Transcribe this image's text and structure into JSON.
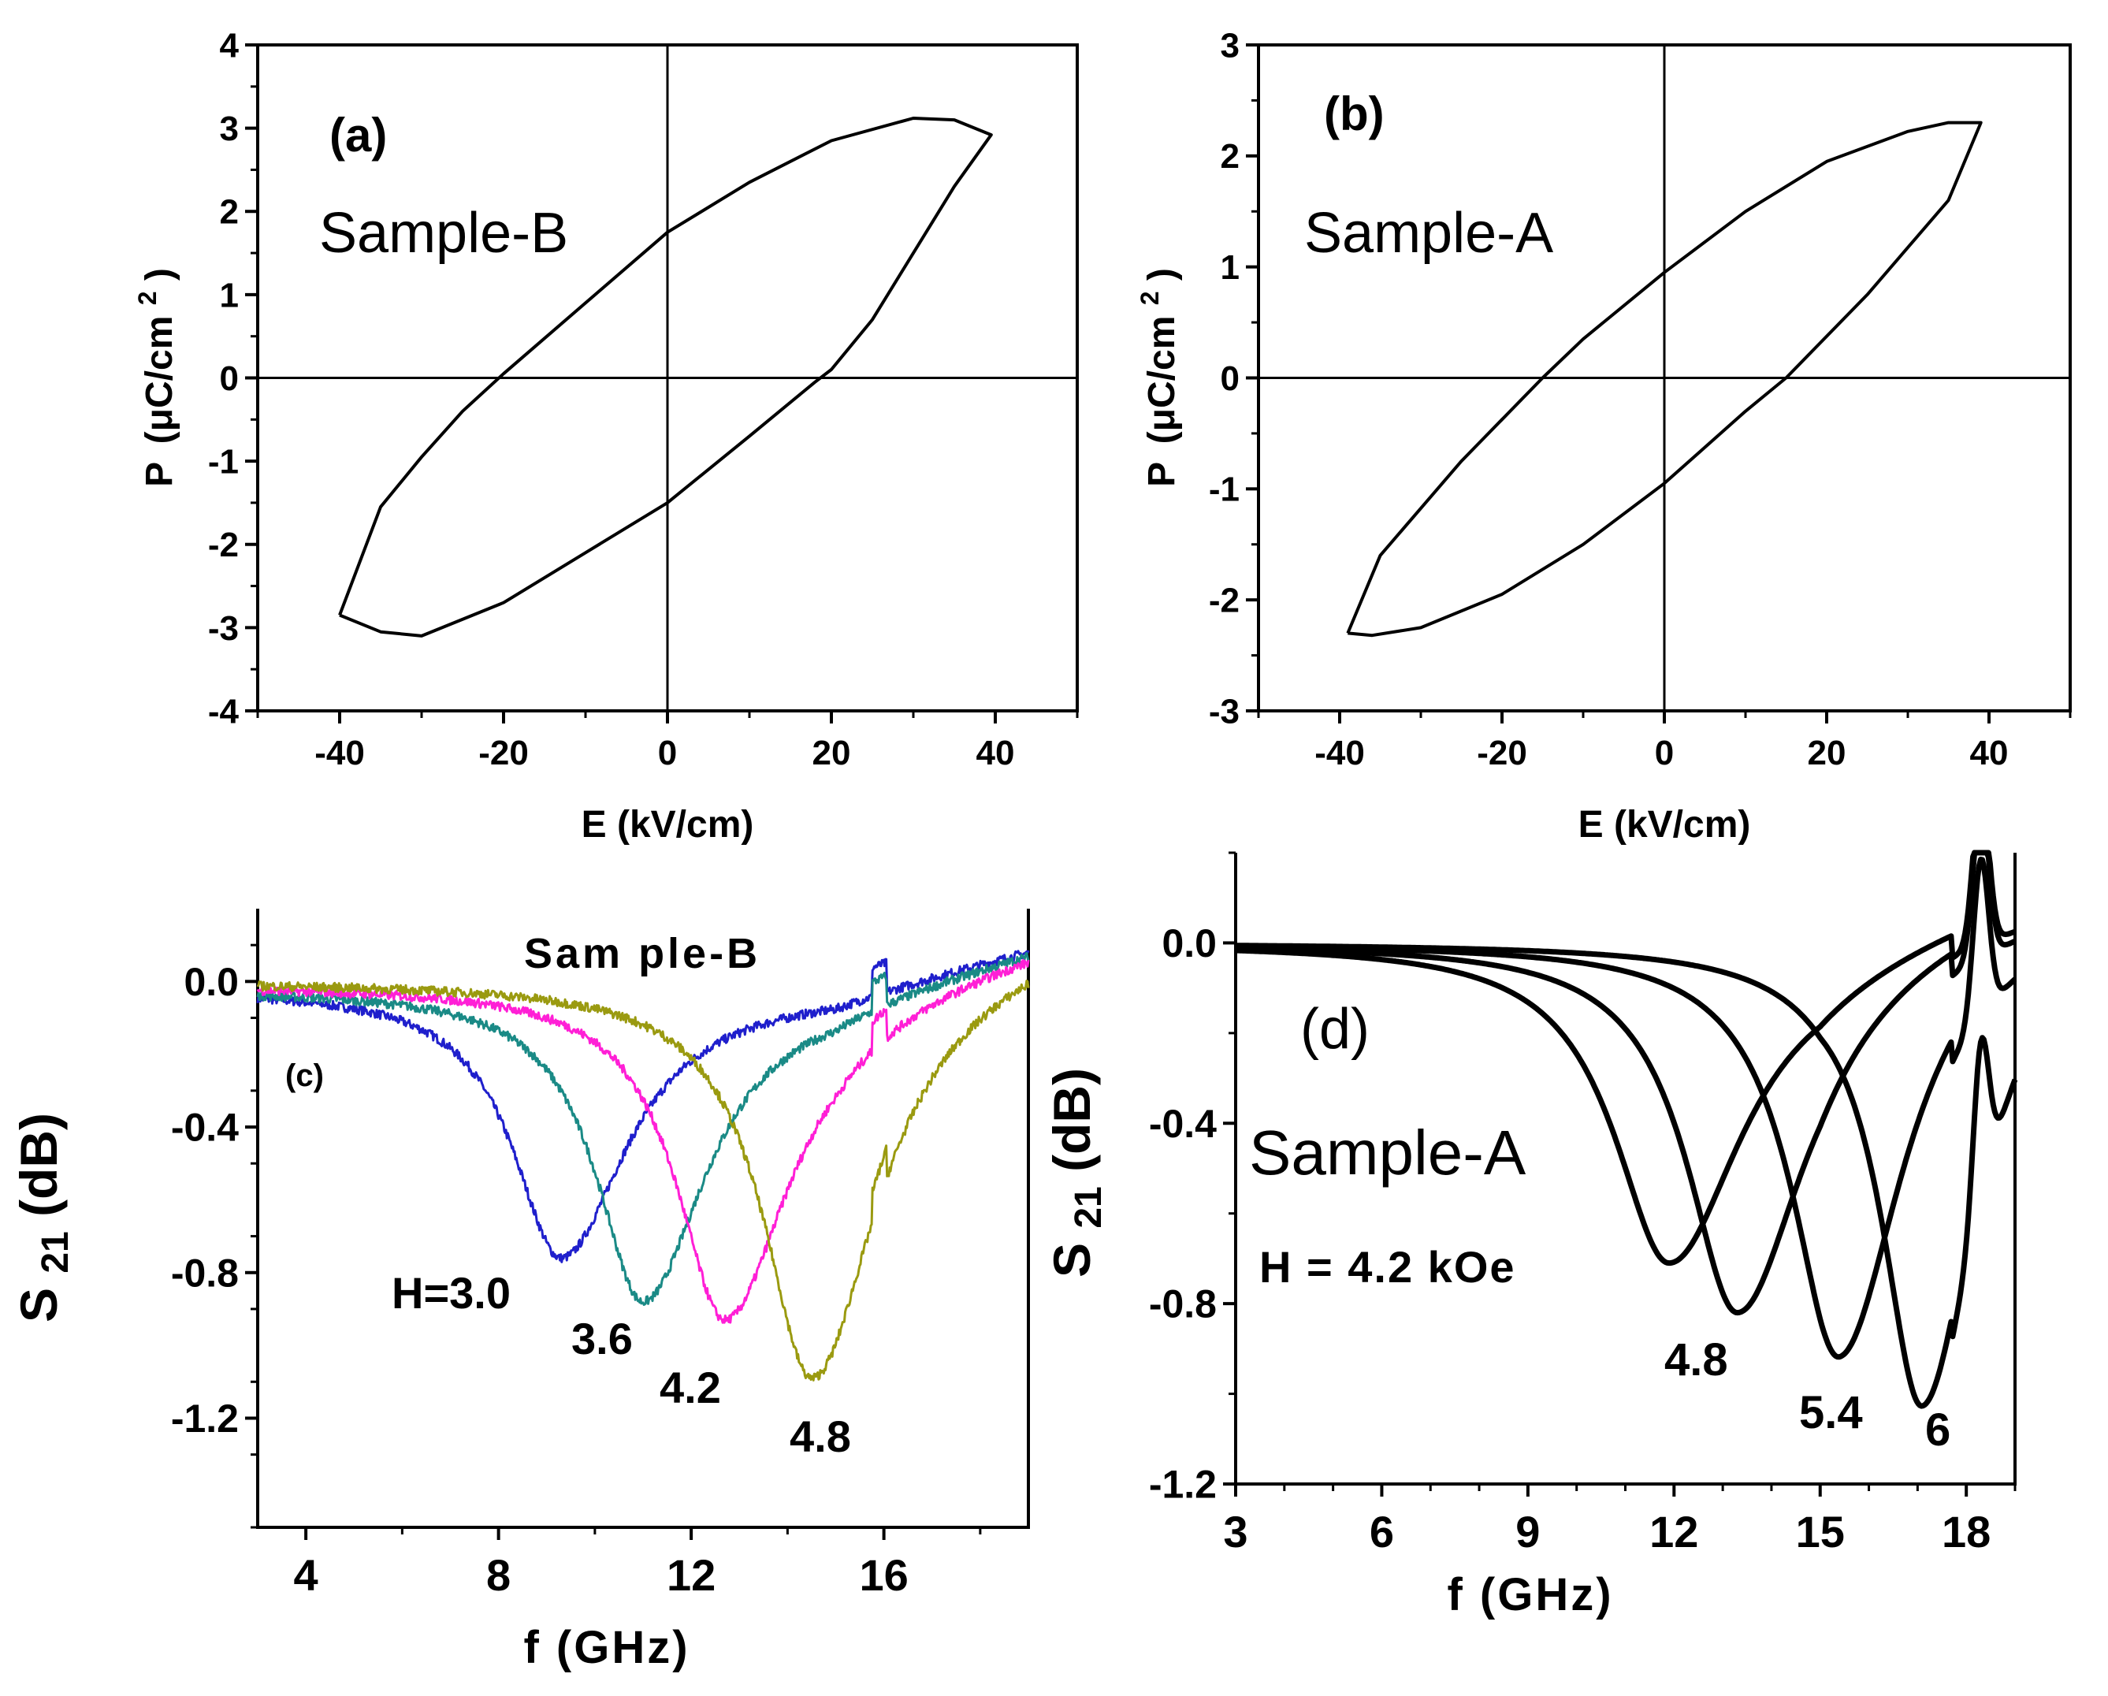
{
  "chart_data": [
    {
      "id": "a",
      "type": "line",
      "panel_label": "(a)",
      "annotation": "Sample-B",
      "xlabel": "E (kV/cm)",
      "ylabel_main": "P",
      "ylabel_unit": "(μC/cm",
      "ylabel_sup": "2",
      "ylabel_close": ")",
      "xlim": [
        -50,
        50
      ],
      "ylim": [
        -4,
        4
      ],
      "x_ticks": [
        -40,
        -20,
        0,
        20,
        40
      ],
      "x_tick_labels": [
        "-40",
        "-20",
        "0",
        "20",
        "40"
      ],
      "y_ticks": [
        -4,
        -3,
        -2,
        -1,
        0,
        1,
        2,
        3,
        4
      ],
      "y_tick_labels": [
        "-4",
        "-3",
        "-2",
        "-1",
        "0",
        "1",
        "2",
        "3",
        "4"
      ],
      "series": [
        {
          "name": "P-E loop",
          "color": "#000000",
          "points": [
            [
              -40,
              -2.85
            ],
            [
              -35,
              -1.55
            ],
            [
              -30,
              -0.95
            ],
            [
              -25,
              -0.4
            ],
            [
              -20,
              0.05
            ],
            [
              -10,
              0.9
            ],
            [
              0,
              1.75
            ],
            [
              10,
              2.35
            ],
            [
              20,
              2.85
            ],
            [
              30,
              3.12
            ],
            [
              35,
              3.1
            ],
            [
              39.5,
              2.92
            ],
            [
              35,
              2.3
            ],
            [
              30,
              1.5
            ],
            [
              25,
              0.7
            ],
            [
              20,
              0.1
            ],
            [
              18,
              -0.05
            ],
            [
              10,
              -0.7
            ],
            [
              0,
              -1.5
            ],
            [
              -10,
              -2.1
            ],
            [
              -20,
              -2.7
            ],
            [
              -30,
              -3.1
            ],
            [
              -35,
              -3.05
            ],
            [
              -40,
              -2.85
            ]
          ]
        }
      ]
    },
    {
      "id": "b",
      "type": "line",
      "panel_label": "(b)",
      "annotation": "Sample-A",
      "xlabel": "E (kV/cm)",
      "ylabel_main": "P",
      "ylabel_unit": "(μC/cm",
      "ylabel_sup": "2",
      "ylabel_close": ")",
      "xlim": [
        -50,
        50
      ],
      "ylim": [
        -3,
        3
      ],
      "x_ticks": [
        -40,
        -20,
        0,
        20,
        40
      ],
      "x_tick_labels": [
        "-40",
        "-20",
        "0",
        "20",
        "40"
      ],
      "y_ticks": [
        -3,
        -2,
        -1,
        0,
        1,
        2,
        3
      ],
      "y_tick_labels": [
        "-3",
        "-2",
        "-1",
        "0",
        "1",
        "2",
        "3"
      ],
      "series": [
        {
          "name": "P-E loop",
          "color": "#000000",
          "points": [
            [
              -39,
              -2.3
            ],
            [
              -35,
              -1.6
            ],
            [
              -25,
              -0.75
            ],
            [
              -15,
              0.0
            ],
            [
              -10,
              0.35
            ],
            [
              0,
              0.95
            ],
            [
              10,
              1.5
            ],
            [
              20,
              1.95
            ],
            [
              30,
              2.22
            ],
            [
              35,
              2.3
            ],
            [
              39,
              2.3
            ],
            [
              35,
              1.6
            ],
            [
              25,
              0.75
            ],
            [
              15,
              0.0
            ],
            [
              10,
              -0.3
            ],
            [
              0,
              -0.95
            ],
            [
              -10,
              -1.5
            ],
            [
              -20,
              -1.95
            ],
            [
              -30,
              -2.25
            ],
            [
              -36,
              -2.32
            ],
            [
              -39,
              -2.3
            ]
          ]
        }
      ]
    },
    {
      "id": "c",
      "type": "line",
      "panel_label": "(c)",
      "annotation": "Sam ple-B",
      "xlabel": "f (GHz)",
      "ylabel_main": "S",
      "ylabel_sub": "21",
      "ylabel_unit": "(dB)",
      "xlim": [
        3,
        19
      ],
      "ylim": [
        -1.5,
        0.2
      ],
      "x_ticks": [
        4,
        8,
        12,
        16
      ],
      "x_tick_labels": [
        "4",
        "8",
        "12",
        "16"
      ],
      "y_ticks": [
        0.0,
        -0.4,
        -0.8,
        -1.2
      ],
      "y_tick_labels": [
        "0.0",
        "-0.4",
        "-0.8",
        "-1.2"
      ],
      "curve_labels": [
        "H=3.0",
        "3.6",
        "4.2",
        "4.8"
      ],
      "series": [
        {
          "name": "H=3.0",
          "color": "#1f1fcc",
          "f0": 9.3,
          "depth": 0.74,
          "width": 1.55,
          "bg": 0.02
        },
        {
          "name": "3.6",
          "color": "#1a8a86",
          "f0": 11.0,
          "depth": 0.86,
          "width": 1.5,
          "bg": 0.02
        },
        {
          "name": "4.2",
          "color": "#ff1fd6",
          "f0": 12.7,
          "depth": 0.92,
          "width": 1.55,
          "bg": 0.01
        },
        {
          "name": "4.8",
          "color": "#9a9a10",
          "f0": 14.5,
          "depth": 1.09,
          "width": 1.55,
          "bg": 0.0
        }
      ]
    },
    {
      "id": "d",
      "type": "line",
      "panel_label": "(d)",
      "annotation": "Sample-A",
      "field_label": "H = 4.2 kOe",
      "xlabel": "f (GHz)",
      "ylabel_main": "S",
      "ylabel_sub": "21",
      "ylabel_unit": "(dB)",
      "xlim": [
        3,
        19
      ],
      "ylim": [
        -1.2,
        0.2
      ],
      "x_ticks": [
        3,
        6,
        9,
        12,
        15,
        18
      ],
      "x_tick_labels": [
        "3",
        "6",
        "9",
        "12",
        "15",
        "18"
      ],
      "y_ticks": [
        0.0,
        -0.4,
        -0.8,
        -1.2
      ],
      "y_tick_labels": [
        "0.0",
        "-0.4",
        "-0.8",
        "-1.2"
      ],
      "curve_labels": [
        "4.8",
        "5.4",
        "6"
      ],
      "series": [
        {
          "name": "4.2",
          "color": "#000000",
          "f0": 11.9,
          "depth": 0.71,
          "width": 1.75,
          "bg": 0.0
        },
        {
          "name": "4.8",
          "color": "#000000",
          "f0": 13.3,
          "depth": 0.82,
          "width": 1.6,
          "bg": 0.0
        },
        {
          "name": "5.4",
          "color": "#000000",
          "f0": 15.4,
          "depth": 0.93,
          "width": 1.5,
          "bg": 0.0
        },
        {
          "name": "6",
          "color": "#000000",
          "f0": 17.1,
          "depth": 1.09,
          "width": 1.3,
          "bg": 0.0
        }
      ]
    }
  ]
}
